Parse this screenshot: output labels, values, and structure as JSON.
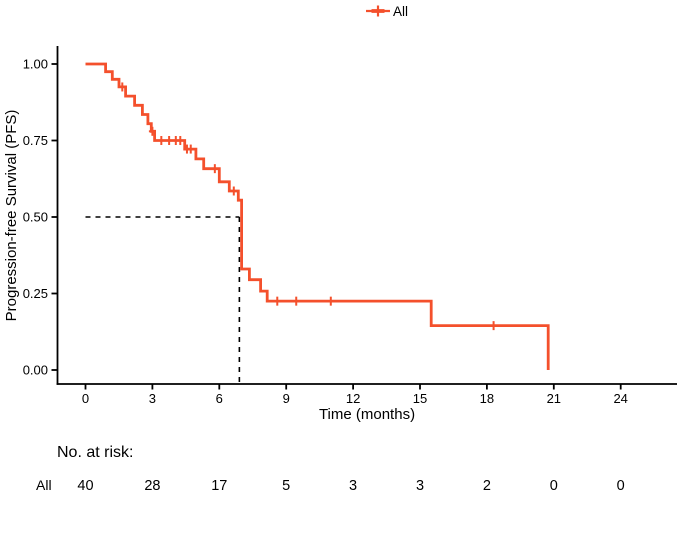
{
  "chart_data": {
    "type": "line",
    "subtype": "kaplan-meier-step",
    "title": "",
    "xlabel": "Time (months)",
    "ylabel": "Progression-free Survival (PFS)",
    "xlim": [
      0,
      26.5
    ],
    "ylim": [
      0,
      1
    ],
    "grid": false,
    "legend_position": "top",
    "x_ticks": [
      0,
      3,
      6,
      9,
      12,
      15,
      18,
      21,
      24
    ],
    "y_ticks": [
      "0.00",
      "0.25",
      "0.50",
      "0.75",
      "1.00"
    ],
    "series": [
      {
        "name": "All",
        "color": "#F4502C",
        "steps": [
          [
            0,
            1.0
          ],
          [
            0.9,
            0.975
          ],
          [
            1.2,
            0.95
          ],
          [
            1.5,
            0.925
          ],
          [
            1.8,
            0.895
          ],
          [
            2.2,
            0.865
          ],
          [
            2.55,
            0.835
          ],
          [
            2.8,
            0.805
          ],
          [
            2.95,
            0.78
          ],
          [
            3.1,
            0.75
          ],
          [
            4.45,
            0.722
          ],
          [
            4.95,
            0.69
          ],
          [
            5.3,
            0.658
          ],
          [
            6.0,
            0.615
          ],
          [
            6.45,
            0.585
          ],
          [
            6.85,
            0.555
          ],
          [
            7.0,
            0.33
          ],
          [
            7.35,
            0.295
          ],
          [
            7.85,
            0.258
          ],
          [
            8.15,
            0.225
          ],
          [
            15.5,
            0.145
          ],
          [
            20.75,
            0.0
          ]
        ],
        "censor_marks": [
          [
            1.65,
            0.925
          ],
          [
            3.0,
            0.78
          ],
          [
            3.4,
            0.75
          ],
          [
            3.75,
            0.75
          ],
          [
            4.05,
            0.75
          ],
          [
            4.25,
            0.75
          ],
          [
            4.55,
            0.722
          ],
          [
            4.72,
            0.722
          ],
          [
            5.8,
            0.658
          ],
          [
            6.65,
            0.585
          ],
          [
            8.6,
            0.225
          ],
          [
            9.45,
            0.225
          ],
          [
            11.0,
            0.225
          ],
          [
            18.3,
            0.145
          ]
        ]
      }
    ],
    "median_annotation": {
      "time_months": 6.9,
      "survival": 0.5,
      "style": "dashed"
    },
    "risk_table": {
      "title": "No. at risk:",
      "times": [
        0,
        3,
        6,
        9,
        12,
        15,
        18,
        21,
        24
      ],
      "rows": [
        {
          "name": "All",
          "counts": [
            40,
            28,
            17,
            5,
            3,
            3,
            2,
            0,
            0
          ]
        }
      ]
    }
  }
}
